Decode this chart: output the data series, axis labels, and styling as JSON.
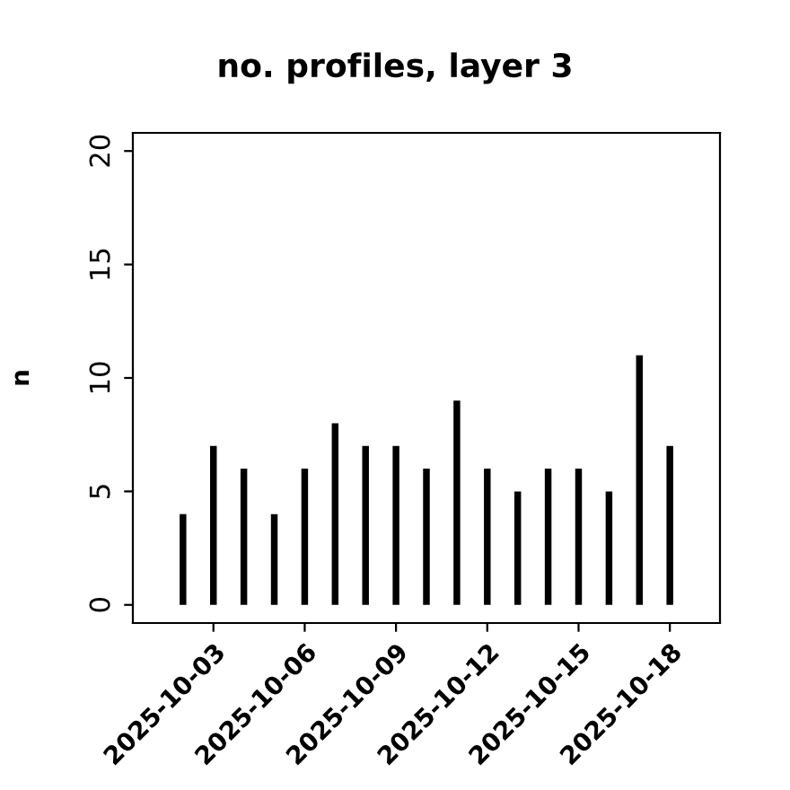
{
  "chart_data": {
    "type": "bar",
    "title": "no. profiles, layer 3",
    "ylabel": "n",
    "color": "#000000",
    "x": [
      "2025-10-02",
      "2025-10-03",
      "2025-10-04",
      "2025-10-05",
      "2025-10-06",
      "2025-10-07",
      "2025-10-08",
      "2025-10-09",
      "2025-10-10",
      "2025-10-11",
      "2025-10-12",
      "2025-10-13",
      "2025-10-14",
      "2025-10-15",
      "2025-10-16",
      "2025-10-17",
      "2025-10-18"
    ],
    "values": [
      4,
      7,
      6,
      4,
      6,
      8,
      7,
      7,
      6,
      9,
      6,
      5,
      6,
      6,
      5,
      11,
      7
    ],
    "xlim": [
      "2025-09-30T08:28",
      "2025-10-19T15:32"
    ],
    "xticks": [
      {
        "value": "2025-10-03",
        "label": "2025-10-03"
      },
      {
        "value": "2025-10-06",
        "label": "2025-10-06"
      },
      {
        "value": "2025-10-09",
        "label": "2025-10-09"
      },
      {
        "value": "2025-10-12",
        "label": "2025-10-12"
      },
      {
        "value": "2025-10-15",
        "label": "2025-10-15"
      },
      {
        "value": "2025-10-18",
        "label": "2025-10-18"
      }
    ],
    "ylim": [
      -0.8,
      20.8
    ],
    "yticks": [
      0,
      5,
      10,
      15,
      20
    ],
    "grid": false
  }
}
